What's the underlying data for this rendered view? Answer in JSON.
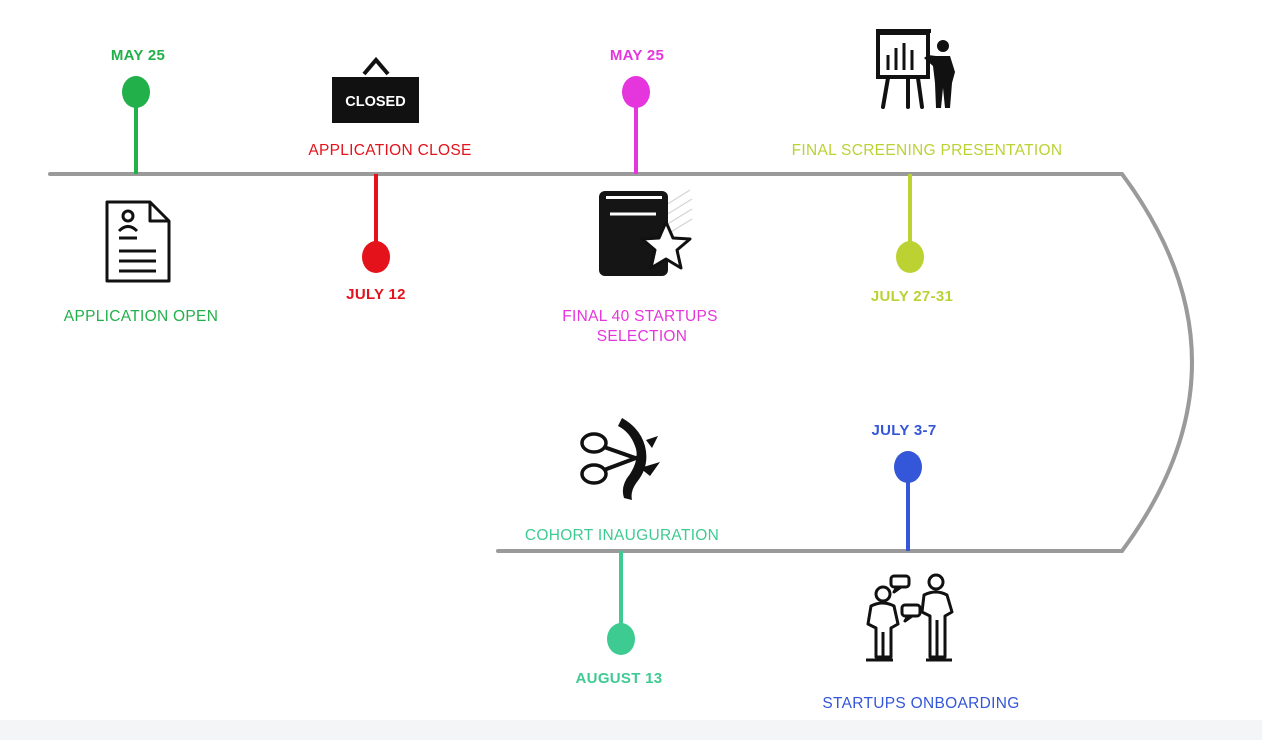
{
  "colors": {
    "track": "#9a9a9a",
    "green": "#22b04b",
    "red": "#e3121b",
    "magenta": "#e535dd",
    "lime": "#bcd233",
    "blue": "#3456d8",
    "teal": "#3ecb92"
  },
  "milestones": [
    {
      "id": "application-open",
      "date": "MAY 25",
      "label": "APPLICATION OPEN",
      "color": "#22b04b",
      "icon": "resume-document-icon"
    },
    {
      "id": "application-close",
      "date": "JULY 12",
      "label": "APPLICATION CLOSE",
      "color": "#e3121b",
      "icon": "closed-sign-icon",
      "sign_text": "CLOSED"
    },
    {
      "id": "final-40-selection",
      "date": "MAY 25",
      "label_line1": "FINAL 40 STARTUPS",
      "label_line2": "SELECTION",
      "color": "#e535dd",
      "icon": "book-star-icon"
    },
    {
      "id": "final-screening",
      "date": "JULY 27-31",
      "label": "FINAL SCREENING PRESENTATION",
      "color": "#bcd233",
      "icon": "presenter-board-icon"
    },
    {
      "id": "startups-onboarding",
      "date": "JULY 3-7",
      "label": "STARTUPS ONBOARDING",
      "color": "#3456d8",
      "icon": "people-conversation-icon"
    },
    {
      "id": "cohort-inauguration",
      "date": "AUGUST 13",
      "label": "COHORT INAUGURATION",
      "color": "#3ecb92",
      "icon": "ribbon-cutting-icon"
    }
  ]
}
